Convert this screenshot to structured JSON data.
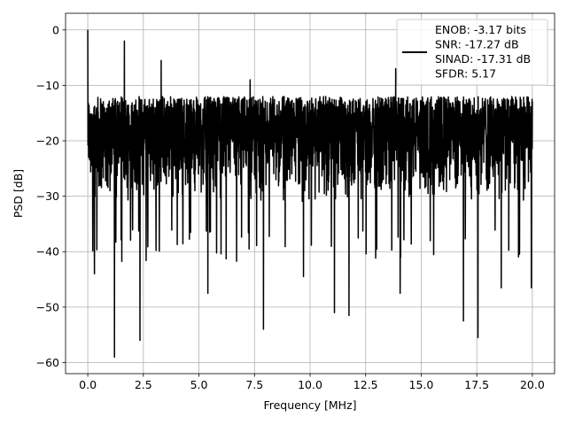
{
  "chart_data": {
    "type": "line",
    "title": "",
    "xlabel": "Frequency [MHz]",
    "ylabel": "PSD [dB]",
    "xlim": [
      -1.0,
      21.0
    ],
    "ylim": [
      -62.0,
      3.0
    ],
    "xticks": [
      0.0,
      2.5,
      5.0,
      7.5,
      10.0,
      12.5,
      15.0,
      17.5,
      20.0
    ],
    "xtick_labels": [
      "0.0",
      "2.5",
      "5.0",
      "7.5",
      "10.0",
      "12.5",
      "15.0",
      "17.5",
      "20.0"
    ],
    "yticks": [
      0,
      -10,
      -20,
      -30,
      -40,
      -50,
      -60
    ],
    "ytick_labels": [
      "0",
      "−10",
      "−20",
      "−30",
      "−40",
      "−50",
      "−60"
    ],
    "grid": true,
    "legend_position": "upper right",
    "legend": [
      "ENOB: -3.17 bits",
      "SNR: -17.27 dB",
      "SINAD: -17.31 dB",
      "SFDR: 5.17"
    ],
    "series": [
      {
        "color": "#000000",
        "noise_floor_band_db": [
          -35,
          -12
        ],
        "peaks": [
          {
            "x": 0.0,
            "y": 0.0
          },
          {
            "x": 1.65,
            "y": -2.0
          },
          {
            "x": 3.3,
            "y": -5.5
          },
          {
            "x": 7.3,
            "y": -9.0
          },
          {
            "x": 13.85,
            "y": -7.0
          }
        ],
        "notches": [
          {
            "x": 0.3,
            "y": -44.0
          },
          {
            "x": 1.2,
            "y": -59.0
          },
          {
            "x": 2.35,
            "y": -56.0
          },
          {
            "x": 5.4,
            "y": -47.5
          },
          {
            "x": 7.9,
            "y": -54.0
          },
          {
            "x": 9.7,
            "y": -44.5
          },
          {
            "x": 11.1,
            "y": -51.0
          },
          {
            "x": 11.75,
            "y": -51.5
          },
          {
            "x": 14.05,
            "y": -47.5
          },
          {
            "x": 16.9,
            "y": -52.5
          },
          {
            "x": 17.55,
            "y": -55.5
          },
          {
            "x": 18.6,
            "y": -46.5
          },
          {
            "x": 19.95,
            "y": -46.5
          }
        ]
      }
    ]
  }
}
